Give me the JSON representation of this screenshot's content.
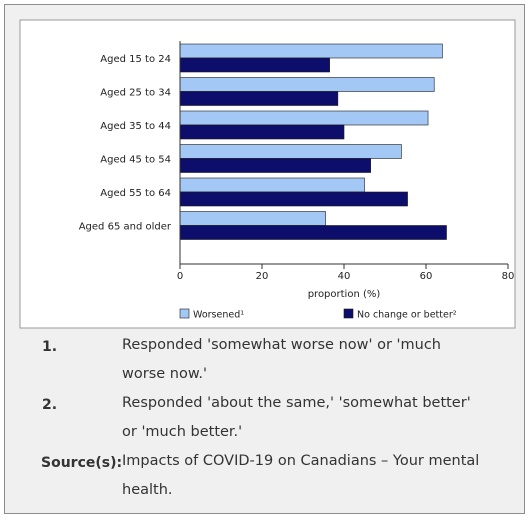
{
  "chart_data": {
    "type": "bar",
    "orientation": "horizontal",
    "categories": [
      "Aged 15 to 24",
      "Aged 25 to 34",
      "Aged 35 to 44",
      "Aged 45 to 54",
      "Aged 55 to 64",
      "Aged 65 and older"
    ],
    "series": [
      {
        "name": "Worsened¹",
        "color": "#a3c8f5",
        "values": [
          64,
          62,
          60.5,
          54,
          45,
          35.5
        ]
      },
      {
        "name": "No change or better²",
        "color": "#0d0d6b",
        "values": [
          36.5,
          38.5,
          40,
          46.5,
          55.5,
          65
        ]
      }
    ],
    "xlabel": "proportion (%)",
    "xlim": [
      0,
      80
    ],
    "xticks": [
      "0",
      "20",
      "40",
      "60",
      "80"
    ],
    "grid": false,
    "legend_position": "bottom"
  },
  "notes": [
    {
      "number": "1.",
      "text": "Responded 'somewhat worse now' or 'much worse now.'"
    },
    {
      "number": "2.",
      "text": "Responded 'about the same,' 'somewhat better' or 'much better.'"
    }
  ],
  "source": {
    "label": "Source(s):",
    "text": "Impacts of COVID-19 on Canadians – Your mental health."
  }
}
